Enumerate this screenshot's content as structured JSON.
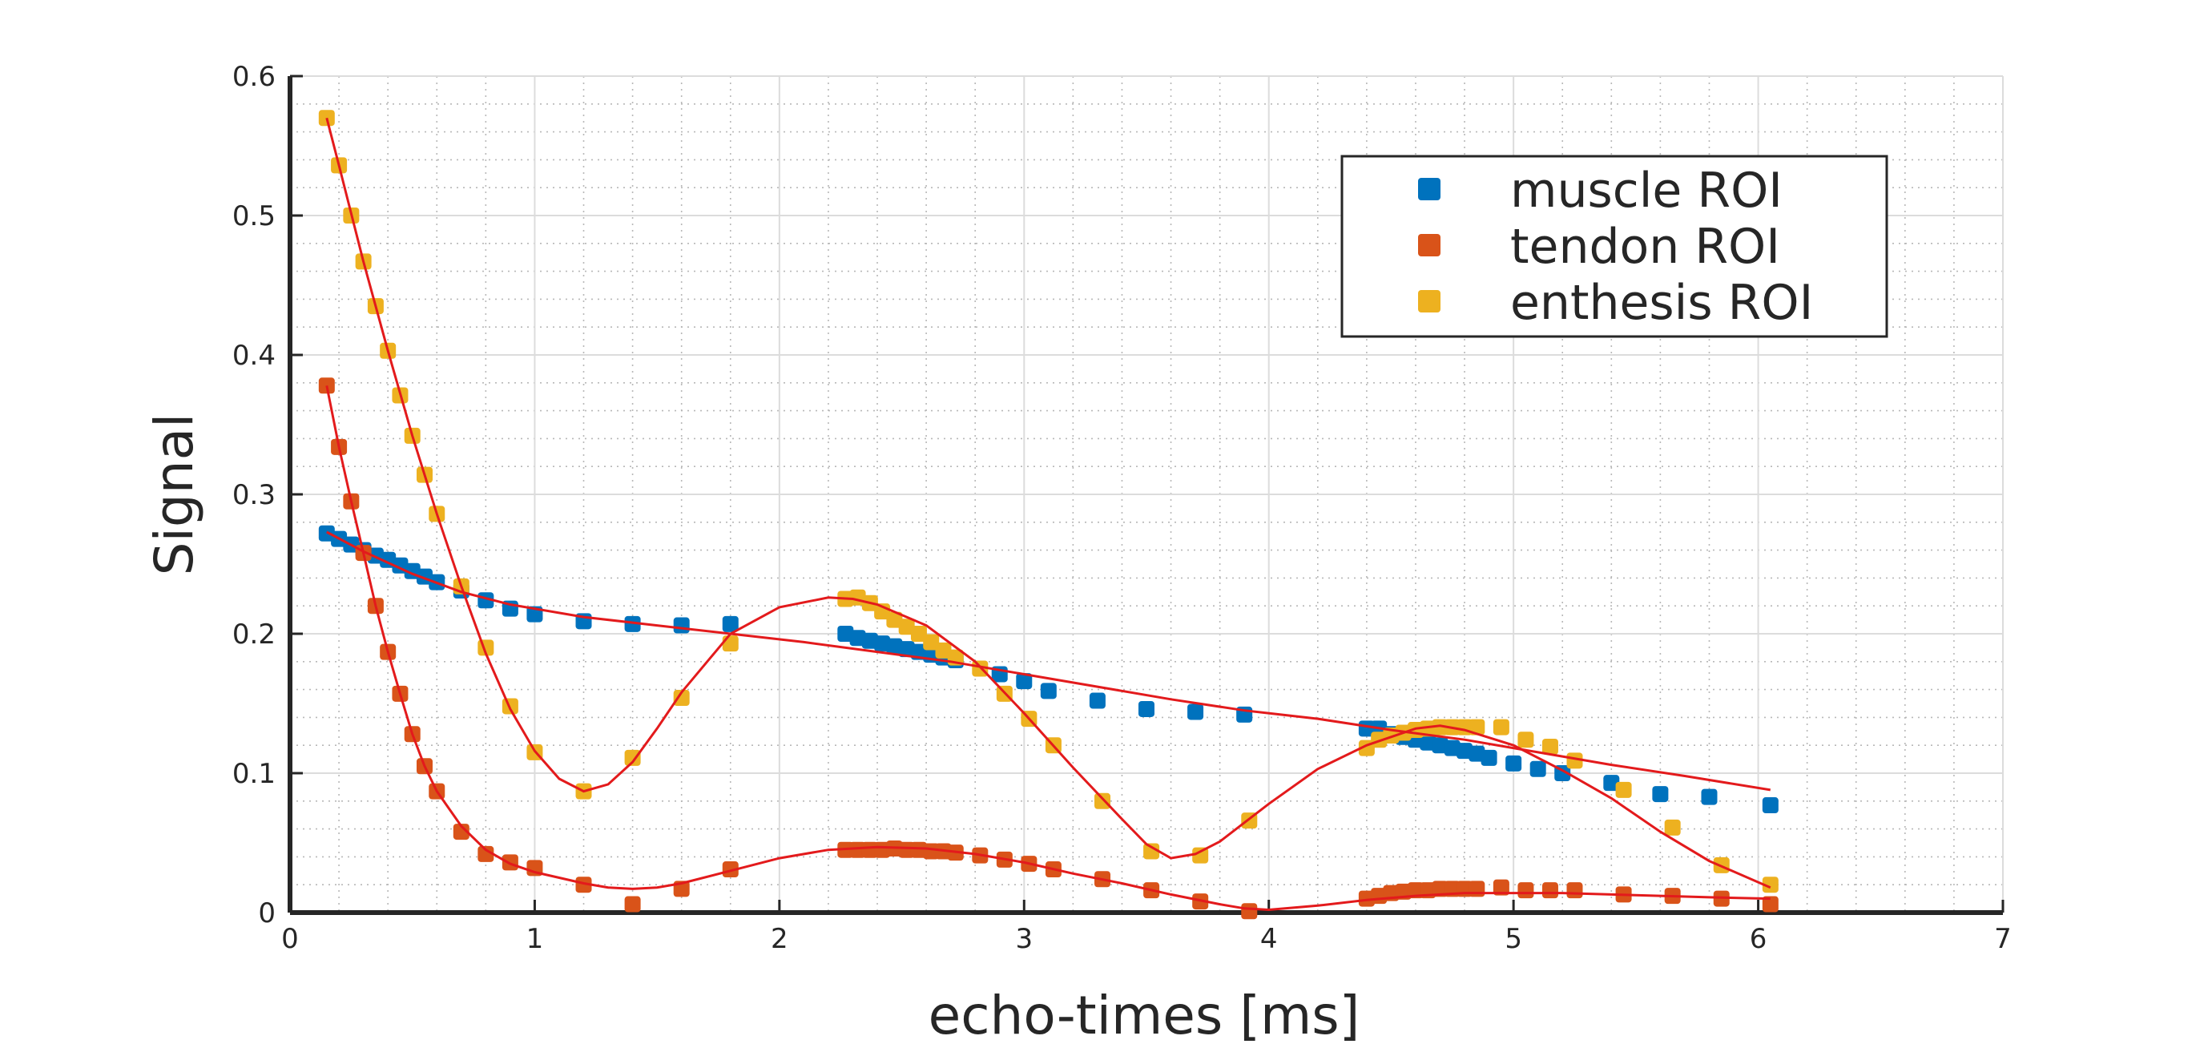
{
  "chart_data": {
    "type": "scatter",
    "title": "",
    "xlabel": "echo-times [ms]",
    "ylabel": "Signal",
    "xlim": [
      0,
      7
    ],
    "ylim": [
      0,
      0.6
    ],
    "xticks": [
      "0",
      "1",
      "2",
      "3",
      "4",
      "5",
      "6",
      "7"
    ],
    "yticks": [
      "0",
      "0.1",
      "0.2",
      "0.3",
      "0.4",
      "0.5",
      "0.6"
    ],
    "grid": true,
    "minor_grid": true,
    "legend_position": "top-right",
    "fit_color": "#e31a1c",
    "series": [
      {
        "name": "muscle ROI",
        "color": "#0072BD",
        "x": [
          0.15,
          0.2,
          0.25,
          0.3,
          0.35,
          0.4,
          0.45,
          0.5,
          0.55,
          0.6,
          0.7,
          0.8,
          0.9,
          1.0,
          1.2,
          1.4,
          1.6,
          1.8,
          2.27,
          2.32,
          2.37,
          2.42,
          2.47,
          2.52,
          2.57,
          2.62,
          2.67,
          2.72,
          2.9,
          3.0,
          3.1,
          3.3,
          3.5,
          3.7,
          3.9,
          4.4,
          4.45,
          4.5,
          4.55,
          4.6,
          4.65,
          4.7,
          4.75,
          4.8,
          4.85,
          4.9,
          5.0,
          5.1,
          5.2,
          5.4,
          5.6,
          5.8,
          6.05
        ],
        "y": [
          0.272,
          0.268,
          0.264,
          0.26,
          0.256,
          0.253,
          0.249,
          0.245,
          0.241,
          0.237,
          0.231,
          0.224,
          0.218,
          0.214,
          0.209,
          0.207,
          0.206,
          0.207,
          0.2,
          0.197,
          0.195,
          0.193,
          0.191,
          0.189,
          0.187,
          0.185,
          0.183,
          0.181,
          0.171,
          0.166,
          0.159,
          0.152,
          0.146,
          0.144,
          0.142,
          0.132,
          0.132,
          0.128,
          0.126,
          0.124,
          0.122,
          0.12,
          0.118,
          0.116,
          0.114,
          0.111,
          0.107,
          0.103,
          0.1,
          0.093,
          0.085,
          0.083,
          0.077
        ]
      },
      {
        "name": "tendon ROI",
        "color": "#D95319",
        "x": [
          0.15,
          0.2,
          0.25,
          0.3,
          0.35,
          0.4,
          0.45,
          0.5,
          0.55,
          0.6,
          0.7,
          0.8,
          0.9,
          1.0,
          1.2,
          1.4,
          1.6,
          1.8,
          2.27,
          2.32,
          2.37,
          2.42,
          2.47,
          2.52,
          2.57,
          2.62,
          2.67,
          2.72,
          2.82,
          2.92,
          3.02,
          3.12,
          3.32,
          3.52,
          3.72,
          3.92,
          4.4,
          4.45,
          4.5,
          4.55,
          4.6,
          4.65,
          4.7,
          4.75,
          4.8,
          4.85,
          4.95,
          5.05,
          5.15,
          5.25,
          5.45,
          5.65,
          5.85,
          6.05
        ],
        "y": [
          0.378,
          0.334,
          0.295,
          0.258,
          0.22,
          0.187,
          0.157,
          0.128,
          0.105,
          0.087,
          0.058,
          0.042,
          0.036,
          0.032,
          0.02,
          0.006,
          0.017,
          0.031,
          0.045,
          0.045,
          0.045,
          0.045,
          0.046,
          0.045,
          0.045,
          0.044,
          0.044,
          0.043,
          0.041,
          0.038,
          0.035,
          0.031,
          0.024,
          0.016,
          0.008,
          0.001,
          0.01,
          0.012,
          0.014,
          0.015,
          0.016,
          0.016,
          0.017,
          0.017,
          0.017,
          0.017,
          0.018,
          0.016,
          0.016,
          0.016,
          0.013,
          0.012,
          0.01,
          0.006
        ]
      },
      {
        "name": "enthesis ROI",
        "color": "#EDB120",
        "x": [
          0.15,
          0.2,
          0.25,
          0.3,
          0.35,
          0.4,
          0.45,
          0.5,
          0.55,
          0.6,
          0.7,
          0.8,
          0.9,
          1.0,
          1.2,
          1.4,
          1.6,
          1.8,
          2.27,
          2.32,
          2.37,
          2.42,
          2.47,
          2.52,
          2.57,
          2.62,
          2.67,
          2.72,
          2.82,
          2.92,
          3.02,
          3.12,
          3.32,
          3.52,
          3.72,
          3.92,
          4.4,
          4.45,
          4.5,
          4.55,
          4.6,
          4.65,
          4.7,
          4.75,
          4.8,
          4.85,
          4.95,
          5.05,
          5.15,
          5.25,
          5.45,
          5.65,
          5.85,
          6.05
        ],
        "y": [
          0.57,
          0.536,
          0.5,
          0.467,
          0.435,
          0.403,
          0.371,
          0.342,
          0.314,
          0.286,
          0.234,
          0.19,
          0.148,
          0.115,
          0.087,
          0.111,
          0.154,
          0.193,
          0.225,
          0.226,
          0.222,
          0.216,
          0.21,
          0.205,
          0.2,
          0.194,
          0.188,
          0.183,
          0.175,
          0.157,
          0.139,
          0.12,
          0.08,
          0.044,
          0.041,
          0.066,
          0.118,
          0.124,
          0.127,
          0.129,
          0.131,
          0.132,
          0.133,
          0.133,
          0.133,
          0.133,
          0.133,
          0.124,
          0.119,
          0.109,
          0.088,
          0.061,
          0.034,
          0.02
        ]
      }
    ],
    "fits": [
      {
        "for": "muscle ROI",
        "x": [
          0.15,
          0.3,
          0.5,
          0.7,
          0.9,
          1.2,
          1.5,
          1.8,
          2.1,
          2.4,
          2.7,
          3.0,
          3.3,
          3.6,
          3.9,
          4.2,
          4.5,
          4.8,
          5.1,
          5.4,
          5.7,
          6.05
        ],
        "y": [
          0.273,
          0.259,
          0.243,
          0.23,
          0.221,
          0.212,
          0.206,
          0.2,
          0.194,
          0.187,
          0.18,
          0.171,
          0.162,
          0.153,
          0.145,
          0.139,
          0.131,
          0.124,
          0.115,
          0.106,
          0.098,
          0.088
        ]
      },
      {
        "for": "tendon ROI",
        "x": [
          0.15,
          0.2,
          0.25,
          0.3,
          0.35,
          0.4,
          0.45,
          0.5,
          0.55,
          0.6,
          0.7,
          0.8,
          0.9,
          1.0,
          1.1,
          1.2,
          1.3,
          1.4,
          1.5,
          1.6,
          1.8,
          2.0,
          2.2,
          2.4,
          2.6,
          2.8,
          3.0,
          3.2,
          3.4,
          3.6,
          3.8,
          3.9,
          4.0,
          4.2,
          4.4,
          4.6,
          4.8,
          5.0,
          5.2,
          5.4,
          5.6,
          5.8,
          6.05
        ],
        "y": [
          0.378,
          0.334,
          0.295,
          0.258,
          0.22,
          0.187,
          0.157,
          0.128,
          0.105,
          0.087,
          0.062,
          0.045,
          0.035,
          0.029,
          0.025,
          0.021,
          0.018,
          0.017,
          0.018,
          0.021,
          0.03,
          0.039,
          0.045,
          0.047,
          0.046,
          0.042,
          0.036,
          0.028,
          0.021,
          0.013,
          0.006,
          0.003,
          0.002,
          0.005,
          0.009,
          0.012,
          0.014,
          0.014,
          0.014,
          0.013,
          0.012,
          0.011,
          0.01
        ]
      },
      {
        "for": "enthesis ROI",
        "x": [
          0.15,
          0.2,
          0.3,
          0.4,
          0.5,
          0.6,
          0.7,
          0.8,
          0.9,
          1.0,
          1.1,
          1.2,
          1.3,
          1.4,
          1.5,
          1.6,
          1.8,
          2.0,
          2.2,
          2.3,
          2.4,
          2.6,
          2.8,
          3.0,
          3.2,
          3.4,
          3.5,
          3.6,
          3.7,
          3.8,
          4.0,
          4.2,
          4.4,
          4.6,
          4.7,
          4.8,
          5.0,
          5.2,
          5.4,
          5.6,
          5.8,
          6.05
        ],
        "y": [
          0.57,
          0.536,
          0.467,
          0.403,
          0.342,
          0.286,
          0.234,
          0.186,
          0.146,
          0.116,
          0.096,
          0.087,
          0.092,
          0.108,
          0.132,
          0.158,
          0.2,
          0.219,
          0.226,
          0.225,
          0.221,
          0.206,
          0.18,
          0.143,
          0.104,
          0.067,
          0.049,
          0.039,
          0.042,
          0.051,
          0.078,
          0.103,
          0.12,
          0.132,
          0.134,
          0.131,
          0.12,
          0.102,
          0.082,
          0.058,
          0.037,
          0.018
        ]
      }
    ]
  }
}
